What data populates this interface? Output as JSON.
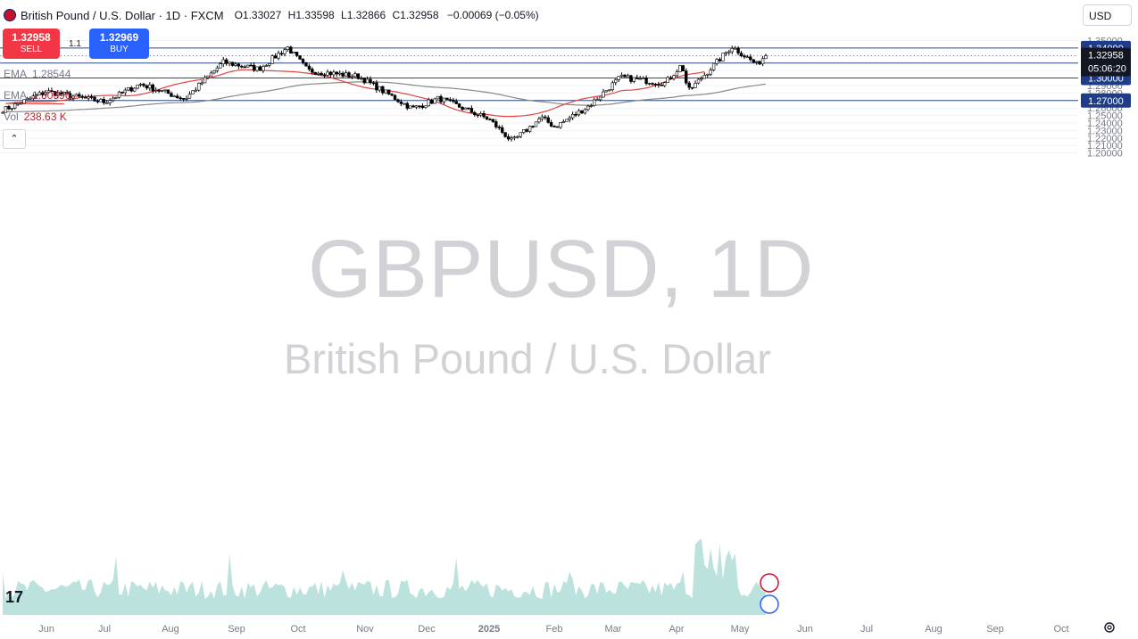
{
  "header": {
    "title": "British Pound / U.S. Dollar · 1D · FXCM",
    "ohlc": [
      {
        "k": "O",
        "v": "1.33027"
      },
      {
        "k": "H",
        "v": "1.33598"
      },
      {
        "k": "L",
        "v": "1.32866"
      },
      {
        "k": "C",
        "v": "1.32958"
      },
      {
        "k": "",
        "v": "−0.00069 (−0.05%)"
      }
    ]
  },
  "trade": {
    "sell_price": "1.32958",
    "sell_label": "SELL",
    "spread": "1.1",
    "buy_price": "1.32969",
    "buy_label": "BUY"
  },
  "indicators": [
    {
      "name": "EMA",
      "value": "1.28544"
    },
    {
      "name": "EMA",
      "value": "1.30996"
    },
    {
      "name": "Vol",
      "value": "238.63 K"
    }
  ],
  "currency_selector": "USD",
  "watermark": {
    "symbol": "GBPUSD, 1D",
    "name": "British Pound / U.S. Dollar"
  },
  "colors": {
    "up": "#ffffff",
    "down": "#000000",
    "wick": "#000000",
    "ema50": "#e0433f",
    "ema200": "#888888",
    "level_line": "#2c4a86",
    "vol_up": "#9fd5d0",
    "vol_down": "#f3b4b4"
  },
  "chart_data": {
    "type": "candlestick",
    "symbol": "GBPUSD",
    "timeframe": "1D",
    "ylim": [
      1.195,
      1.355
    ],
    "y_ticks": [
      "1.35000",
      "1.34000",
      "1.33000",
      "1.32000",
      "1.31000",
      "1.30000",
      "1.29000",
      "1.28000",
      "1.27000",
      "1.26000",
      "1.25000",
      "1.24000",
      "1.23000",
      "1.22000",
      "1.21000",
      "1.20000"
    ],
    "x_ticks": [
      "Jun",
      "Jul",
      "Aug",
      "Sep",
      "Oct",
      "Nov",
      "Dec",
      "2025",
      "Feb",
      "Mar",
      "Apr",
      "May",
      "Jun",
      "Jul",
      "Aug",
      "Sep",
      "Oct"
    ],
    "horizontal_levels": [
      "1.34000",
      "1.32000",
      "1.30000",
      "1.27000"
    ],
    "last_price": "1.32958",
    "countdown": "05:06:20",
    "price_path": [
      [
        "May",
        1.258
      ],
      [
        "Jun",
        1.282
      ],
      [
        "Jul",
        1.268
      ],
      [
        "Aug",
        1.292
      ],
      [
        "Aug",
        1.272
      ],
      [
        "Sep",
        1.321
      ],
      [
        "Sep",
        1.312
      ],
      [
        "Oct",
        1.341
      ],
      [
        "Oct",
        1.31
      ],
      [
        "Nov",
        1.302
      ],
      [
        "Nov",
        1.282
      ],
      [
        "Dec",
        1.259
      ],
      [
        "Dec",
        1.273
      ],
      [
        "2025",
        1.245
      ],
      [
        "2025",
        1.215
      ],
      [
        "Feb",
        1.247
      ],
      [
        "Feb",
        1.235
      ],
      [
        "Mar",
        1.263
      ],
      [
        "Mar",
        1.301
      ],
      [
        "Apr",
        1.293
      ],
      [
        "Apr",
        1.318
      ],
      [
        "Apr",
        1.282
      ],
      [
        "May",
        1.342
      ],
      [
        "May",
        1.318
      ],
      [
        "May",
        1.331
      ]
    ],
    "ema_50_end": 1.30996,
    "ema_200_end": 1.28544,
    "volume_last": "238.63 K"
  }
}
